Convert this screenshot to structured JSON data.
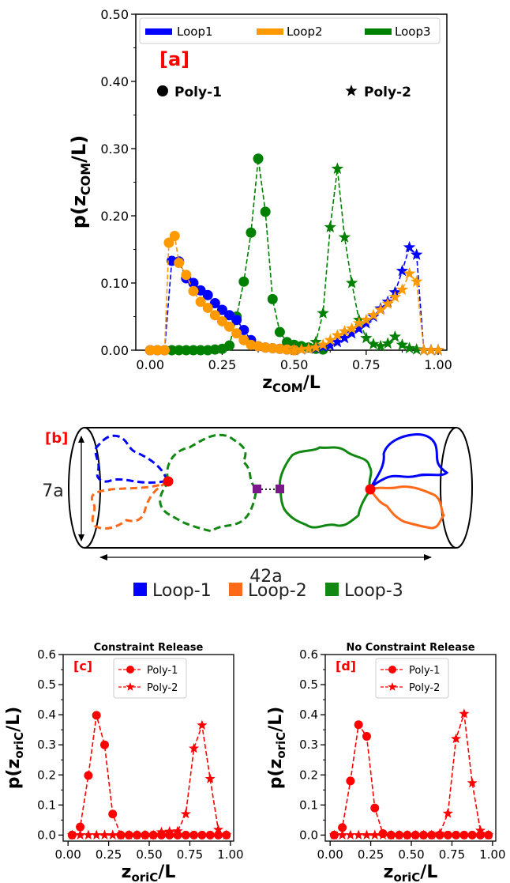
{
  "panel_a": {
    "tag": "[a]",
    "xlabel_main": "z",
    "xlabel_sub": "COM",
    "xlabel_tail": "/L",
    "ylabel_main": "p(z",
    "ylabel_sub": "COM",
    "ylabel_tail": "/L)",
    "poly1_label": "Poly-1",
    "poly2_label": "Poly-2",
    "xticks": [
      "0.00",
      "0.25",
      "0.50",
      "0.75",
      "1.00"
    ],
    "yticks": [
      "0.00",
      "0.10",
      "0.20",
      "0.30",
      "0.40",
      "0.50"
    ],
    "legend": [
      "Loop1",
      "Loop2",
      "Loop3"
    ],
    "colors": {
      "loop1": "#0000ff",
      "loop2": "#ff9900",
      "loop3": "#008000"
    }
  },
  "panel_b": {
    "tag": "[b]",
    "diameter_label": "7a",
    "length_label": "42a",
    "legend": [
      "Loop-1",
      "Loop-2",
      "Loop-3"
    ],
    "colors": {
      "loop1": "#0000ff",
      "loop2": "#ff6a1a",
      "loop3": "#118811",
      "link": "#7a1a8a",
      "ori": "#ff0000"
    }
  },
  "panel_c": {
    "title": "Constraint Release",
    "tag": "[c]",
    "legend": [
      "Poly-1",
      "Poly-2"
    ],
    "xlabel_main": "z",
    "xlabel_sub": "oriC",
    "xlabel_tail": "/L",
    "ylabel_main": "p(z",
    "ylabel_sub": "oriC",
    "ylabel_tail": "/L)",
    "xticks": [
      "0.00",
      "0.25",
      "0.50",
      "0.75",
      "1.00"
    ],
    "yticks": [
      "0.0",
      "0.1",
      "0.2",
      "0.3",
      "0.4",
      "0.5",
      "0.6"
    ]
  },
  "panel_d": {
    "title": "No Constraint Release",
    "tag": "[d]",
    "legend": [
      "Poly-1",
      "Poly-2"
    ],
    "xlabel_main": "z",
    "xlabel_sub": "oriC",
    "xlabel_tail": "/L",
    "ylabel_main": "p(z",
    "ylabel_sub": "oriC",
    "ylabel_tail": "/L)",
    "xticks": [
      "0.00",
      "0.25",
      "0.50",
      "0.75",
      "1.00"
    ],
    "yticks": [
      "0.0",
      "0.1",
      "0.2",
      "0.3",
      "0.4",
      "0.5",
      "0.6"
    ]
  },
  "chart_data": [
    {
      "type": "line",
      "panel": "a",
      "xlim": [
        0,
        1
      ],
      "ylim": [
        0,
        0.5
      ],
      "series": [
        {
          "name": "Loop1",
          "marker": "circle",
          "x": [
            0.0,
            0.025,
            0.05,
            0.075,
            0.1,
            0.125,
            0.15,
            0.175,
            0.2,
            0.225,
            0.25,
            0.275,
            0.3,
            0.325,
            0.35,
            0.375,
            0.4,
            0.425,
            0.45,
            0.475,
            0.5
          ],
          "y": [
            0,
            0,
            0,
            0.133,
            0.132,
            0.107,
            0.1,
            0.089,
            0.082,
            0.07,
            0.06,
            0.052,
            0.045,
            0.03,
            0.015,
            0.006,
            0.004,
            0.003,
            0.002,
            0.001,
            0
          ]
        },
        {
          "name": "Loop2",
          "marker": "circle",
          "x": [
            0.0,
            0.025,
            0.05,
            0.065,
            0.085,
            0.1,
            0.125,
            0.15,
            0.175,
            0.2,
            0.225,
            0.25,
            0.275,
            0.3,
            0.325,
            0.35,
            0.375,
            0.4,
            0.425,
            0.45,
            0.475,
            0.5
          ],
          "y": [
            0,
            0,
            0,
            0.16,
            0.17,
            0.13,
            0.112,
            0.088,
            0.072,
            0.063,
            0.052,
            0.043,
            0.035,
            0.025,
            0.015,
            0.008,
            0.006,
            0.004,
            0.003,
            0.002,
            0.001,
            0
          ]
        },
        {
          "name": "Loop3",
          "marker": "circle",
          "x": [
            0.0,
            0.025,
            0.05,
            0.075,
            0.1,
            0.125,
            0.15,
            0.175,
            0.2,
            0.225,
            0.25,
            0.275,
            0.3,
            0.325,
            0.35,
            0.375,
            0.4,
            0.425,
            0.45,
            0.475,
            0.5,
            0.525,
            0.55,
            0.575,
            0.6
          ],
          "y": [
            0,
            0,
            0,
            0,
            0,
            0,
            0,
            0,
            0,
            0.001,
            0.002,
            0.007,
            0.05,
            0.102,
            0.175,
            0.285,
            0.206,
            0.076,
            0.027,
            0.012,
            0.008,
            0.006,
            0.004,
            0.002,
            0.001
          ]
        },
        {
          "name": "Loop1 (Poly-2)",
          "marker": "star",
          "x": [
            0.5,
            0.525,
            0.55,
            0.575,
            0.6,
            0.625,
            0.65,
            0.675,
            0.7,
            0.725,
            0.75,
            0.775,
            0.8,
            0.825,
            0.85,
            0.875,
            0.9,
            0.925,
            0.95,
            0.975,
            1.0
          ],
          "y": [
            0,
            0.001,
            0.002,
            0.003,
            0.005,
            0.007,
            0.012,
            0.018,
            0.025,
            0.032,
            0.04,
            0.05,
            0.062,
            0.072,
            0.086,
            0.118,
            0.153,
            0.142,
            0,
            0,
            0
          ]
        },
        {
          "name": "Loop2 (Poly-2)",
          "marker": "star",
          "x": [
            0.5,
            0.525,
            0.55,
            0.575,
            0.6,
            0.625,
            0.65,
            0.675,
            0.7,
            0.725,
            0.75,
            0.775,
            0.8,
            0.825,
            0.85,
            0.875,
            0.9,
            0.925,
            0.95,
            0.975,
            1.0
          ],
          "y": [
            0,
            0.001,
            0.002,
            0.004,
            0.008,
            0.015,
            0.022,
            0.028,
            0.032,
            0.04,
            0.045,
            0.052,
            0.06,
            0.069,
            0.079,
            0.09,
            0.114,
            0.102,
            0,
            0,
            0
          ]
        },
        {
          "name": "Loop3 (Poly-2)",
          "marker": "star",
          "x": [
            0.5,
            0.525,
            0.55,
            0.575,
            0.6,
            0.625,
            0.65,
            0.675,
            0.7,
            0.725,
            0.75,
            0.775,
            0.8,
            0.825,
            0.85,
            0.875,
            0.9,
            0.925,
            0.95,
            0.975,
            1.0
          ],
          "y": [
            0,
            0.001,
            0.003,
            0.012,
            0.055,
            0.183,
            0.27,
            0.168,
            0.1,
            0.045,
            0.018,
            0.009,
            0.006,
            0.01,
            0.02,
            0.008,
            0.003,
            0.001,
            0,
            0,
            0
          ]
        }
      ]
    },
    {
      "type": "line",
      "panel": "c",
      "xlim": [
        0,
        1
      ],
      "ylim": [
        0,
        0.6
      ],
      "series": [
        {
          "name": "Poly-1",
          "marker": "circle",
          "x": [
            0.025,
            0.075,
            0.125,
            0.175,
            0.225,
            0.275,
            0.325,
            0.375,
            0.425,
            0.475,
            0.525,
            0.575,
            0.625,
            0.675,
            0.725,
            0.775,
            0.825,
            0.875,
            0.925,
            0.975
          ],
          "y": [
            0,
            0.027,
            0.198,
            0.398,
            0.3,
            0.07,
            0,
            0,
            0,
            0,
            0,
            0,
            0,
            0,
            0,
            0,
            0,
            0,
            0,
            0
          ]
        },
        {
          "name": "Poly-2",
          "marker": "star",
          "x": [
            0.025,
            0.075,
            0.125,
            0.175,
            0.225,
            0.275,
            0.325,
            0.375,
            0.425,
            0.475,
            0.525,
            0.575,
            0.625,
            0.675,
            0.725,
            0.775,
            0.825,
            0.875,
            0.925,
            0.975
          ],
          "y": [
            0,
            0,
            0,
            0,
            0,
            0,
            0,
            0,
            0,
            0,
            0,
            0.01,
            0.012,
            0.013,
            0.07,
            0.288,
            0.365,
            0.187,
            0.018,
            0
          ]
        }
      ]
    },
    {
      "type": "line",
      "panel": "d",
      "xlim": [
        0,
        1
      ],
      "ylim": [
        0,
        0.6
      ],
      "series": [
        {
          "name": "Poly-1",
          "marker": "circle",
          "x": [
            0.025,
            0.075,
            0.125,
            0.175,
            0.225,
            0.275,
            0.325,
            0.375,
            0.425,
            0.475,
            0.525,
            0.575,
            0.625,
            0.675,
            0.725,
            0.775,
            0.825,
            0.875,
            0.925,
            0.975
          ],
          "y": [
            0,
            0.025,
            0.18,
            0.367,
            0.328,
            0.09,
            0.005,
            0,
            0,
            0,
            0,
            0,
            0,
            0,
            0,
            0,
            0,
            0,
            0,
            0
          ]
        },
        {
          "name": "Poly-2",
          "marker": "star",
          "x": [
            0.025,
            0.075,
            0.125,
            0.175,
            0.225,
            0.275,
            0.325,
            0.375,
            0.425,
            0.475,
            0.525,
            0.575,
            0.625,
            0.675,
            0.725,
            0.775,
            0.825,
            0.875,
            0.925,
            0.975
          ],
          "y": [
            0,
            0,
            0,
            0,
            0,
            0,
            0,
            0,
            0,
            0,
            0,
            0,
            0,
            0.005,
            0.072,
            0.32,
            0.403,
            0.173,
            0.015,
            0
          ]
        }
      ]
    }
  ]
}
